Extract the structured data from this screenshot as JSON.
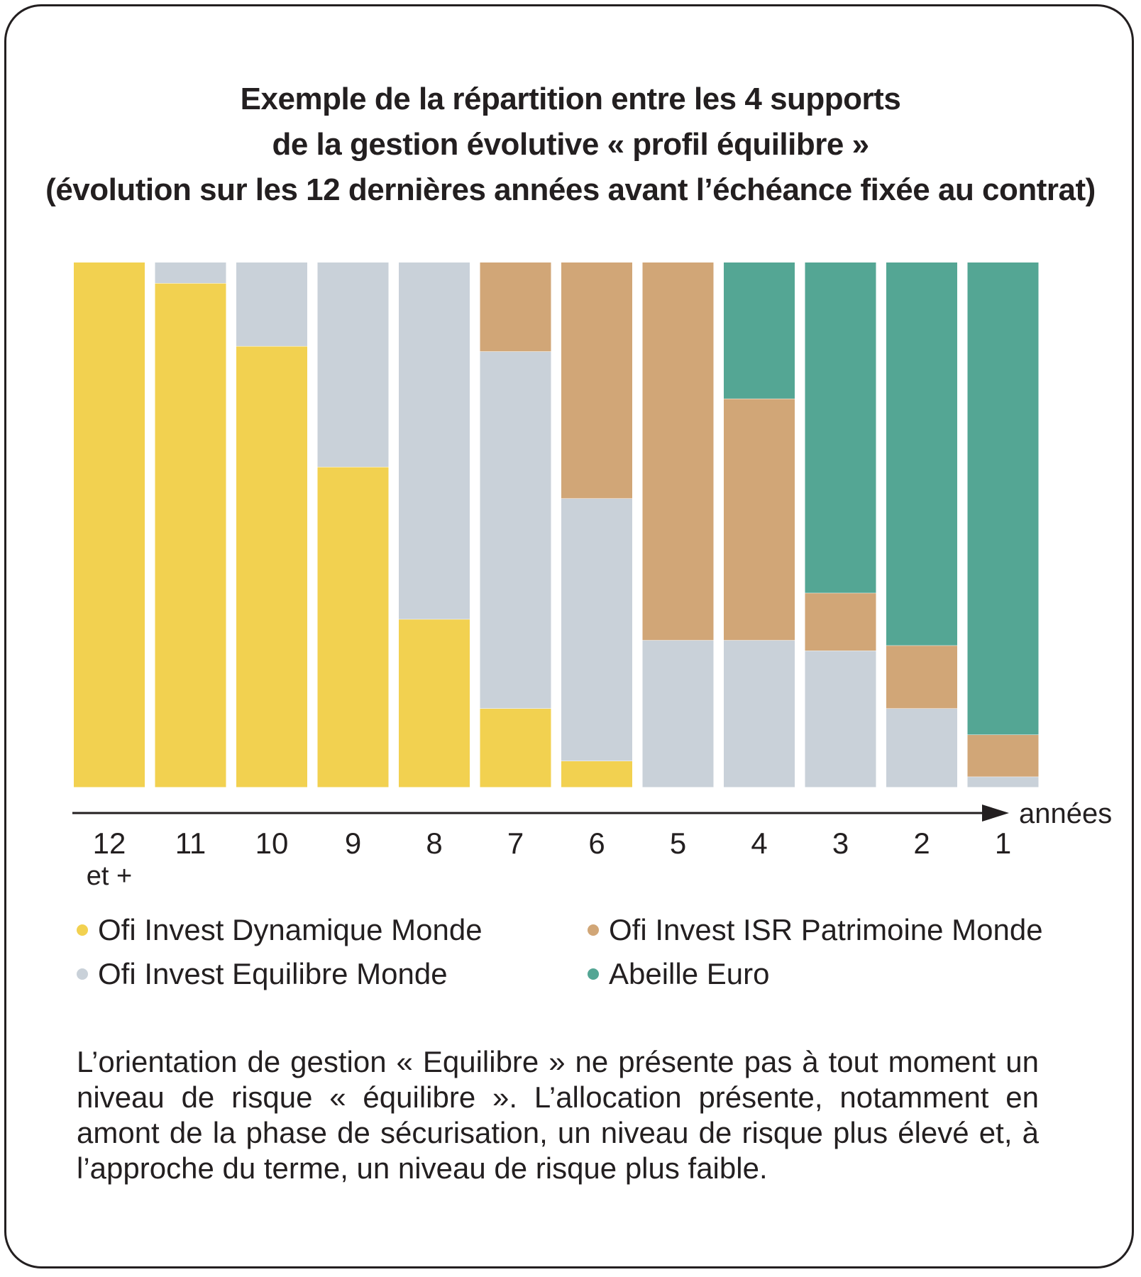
{
  "title_lines": [
    "Exemple de la répartition entre les 4 supports",
    "de la gestion évolutive « profil équilibre »",
    "(évolution sur les 12 dernières années avant l’échéance fixée au contrat)"
  ],
  "note": "L’orientation de gestion « Equilibre » ne présente pas à tout moment un niveau de risque « équilibre ». L’allocation présente, notamment en amont de la phase de sécurisation, un niveau de risque plus élevé et, à l’approche du terme, un niveau de risque plus faible.",
  "colors": {
    "dynamique": "#f2d150",
    "equilibre": "#c9d1d9",
    "patrimoine": "#d1a677",
    "euro": "#54a694"
  },
  "chart_data": {
    "type": "bar",
    "stacked": true,
    "xlabel": "années",
    "ylim": [
      0,
      100
    ],
    "categories": [
      "12\net +",
      "11",
      "10",
      "9",
      "8",
      "7",
      "6",
      "5",
      "4",
      "3",
      "2",
      "1"
    ],
    "series": [
      {
        "name": "Ofi Invest Dynamique Monde",
        "color_key": "dynamique",
        "values": [
          100,
          96,
          84,
          61,
          32,
          15,
          5,
          0,
          0,
          0,
          0,
          0
        ]
      },
      {
        "name": "Ofi Invest Equilibre Monde",
        "color_key": "equilibre",
        "values": [
          0,
          4,
          16,
          39,
          68,
          68,
          50,
          28,
          28,
          26,
          15,
          2
        ]
      },
      {
        "name": "Ofi Invest ISR Patrimoine Monde",
        "color_key": "patrimoine",
        "values": [
          0,
          0,
          0,
          0,
          0,
          17,
          45,
          72,
          46,
          11,
          12,
          8
        ]
      },
      {
        "name": "Abeille Euro",
        "color_key": "euro",
        "values": [
          0,
          0,
          0,
          0,
          0,
          0,
          0,
          0,
          26,
          63,
          73,
          90
        ]
      }
    ],
    "legend_position": "bottom",
    "grid": false
  }
}
